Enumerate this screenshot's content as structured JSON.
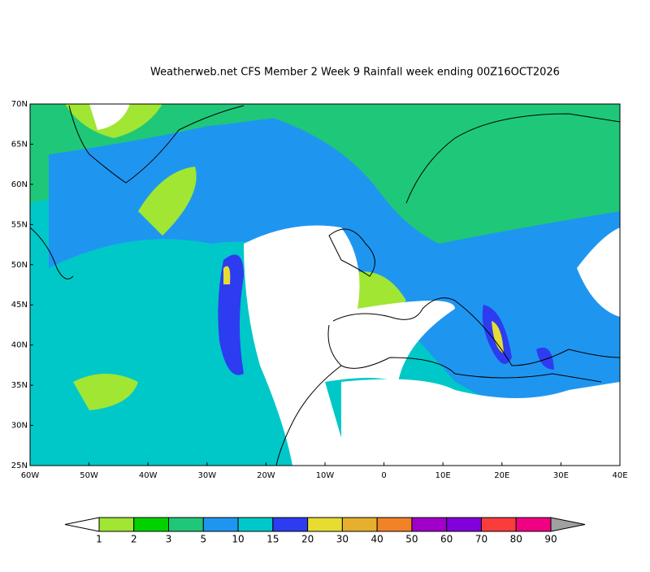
{
  "title": "Weatherweb.net CFS Member 2 Week 9 Rainfall week ending 00Z16OCT2026",
  "map": {
    "lat_labels": [
      "70N",
      "65N",
      "60N",
      "55N",
      "50N",
      "45N",
      "40N",
      "35N",
      "30N",
      "25N"
    ],
    "lon_labels": [
      "60W",
      "50W",
      "40W",
      "30W",
      "20W",
      "10W",
      "0",
      "10E",
      "20E",
      "30E",
      "40E"
    ]
  },
  "legend": {
    "labels": [
      1,
      2,
      3,
      5,
      10,
      15,
      20,
      30,
      40,
      50,
      60,
      70,
      80,
      90
    ],
    "colors": [
      "#a0e632",
      "#00d200",
      "#1ec878",
      "#1e96f0",
      "#00c8c8",
      "#2d3cf0",
      "#e6dc32",
      "#e6af2d",
      "#f08228",
      "#a000c8",
      "#8200dc",
      "#fa3c3c",
      "#f00082"
    ],
    "under_color": "#ffffff",
    "over_color": "#a0a0a0"
  }
}
